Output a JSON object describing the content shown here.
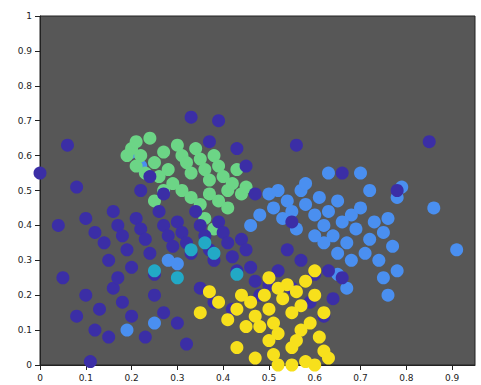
{
  "chart_data": {
    "type": "scatter",
    "marker": "circle",
    "grid": false,
    "xlim": [
      0,
      0.95
    ],
    "xticks": [
      0,
      0.1,
      0.2,
      0.3,
      0.4,
      0.5,
      0.6,
      0.7,
      0.8,
      0.9
    ],
    "ylim": [
      0,
      1
    ],
    "yticks": [
      0,
      0.1,
      0.2,
      0.3,
      0.4,
      0.5,
      0.6,
      0.7,
      0.8,
      0.9,
      1
    ],
    "series": [
      {
        "color": "#4a8ff0",
        "x": [
          0.5,
          0.52,
          0.54,
          0.55,
          0.57,
          0.58,
          0.6,
          0.61,
          0.62,
          0.63,
          0.64,
          0.65,
          0.66,
          0.67,
          0.68,
          0.69,
          0.7,
          0.71,
          0.72,
          0.73,
          0.74,
          0.75,
          0.76,
          0.77,
          0.78,
          0.79,
          0.72,
          0.7,
          0.75,
          0.76,
          0.78,
          0.68,
          0.65,
          0.62,
          0.6,
          0.56,
          0.53,
          0.51,
          0.48,
          0.46,
          0.86,
          0.91,
          0.67,
          0.65,
          0.2,
          0.22,
          0.28,
          0.3,
          0.19,
          0.25,
          0.63,
          0.58
        ],
        "y": [
          0.49,
          0.5,
          0.47,
          0.44,
          0.5,
          0.46,
          0.43,
          0.48,
          0.4,
          0.44,
          0.37,
          0.47,
          0.41,
          0.35,
          0.43,
          0.39,
          0.45,
          0.32,
          0.36,
          0.41,
          0.3,
          0.38,
          0.42,
          0.34,
          0.48,
          0.51,
          0.5,
          0.55,
          0.25,
          0.2,
          0.27,
          0.3,
          0.32,
          0.35,
          0.37,
          0.39,
          0.42,
          0.45,
          0.43,
          0.4,
          0.45,
          0.33,
          0.22,
          0.26,
          0.61,
          0.57,
          0.3,
          0.29,
          0.1,
          0.12,
          0.55,
          0.52
        ]
      },
      {
        "color": "#6cd586",
        "x": [
          0.2,
          0.21,
          0.22,
          0.24,
          0.25,
          0.23,
          0.27,
          0.28,
          0.3,
          0.31,
          0.32,
          0.33,
          0.34,
          0.35,
          0.36,
          0.37,
          0.38,
          0.39,
          0.4,
          0.41,
          0.42,
          0.43,
          0.44,
          0.45,
          0.29,
          0.31,
          0.33,
          0.35,
          0.37,
          0.26,
          0.21,
          0.19,
          0.39,
          0.41,
          0.36,
          0.38,
          0.27,
          0.25
        ],
        "y": [
          0.62,
          0.64,
          0.6,
          0.65,
          0.58,
          0.55,
          0.61,
          0.56,
          0.63,
          0.6,
          0.58,
          0.55,
          0.62,
          0.59,
          0.56,
          0.53,
          0.6,
          0.57,
          0.54,
          0.5,
          0.52,
          0.56,
          0.49,
          0.51,
          0.52,
          0.5,
          0.48,
          0.46,
          0.49,
          0.54,
          0.57,
          0.6,
          0.47,
          0.45,
          0.42,
          0.39,
          0.5,
          0.47
        ]
      },
      {
        "color": "#3b2ea6",
        "x": [
          0.0,
          0.06,
          0.08,
          0.04,
          0.1,
          0.12,
          0.14,
          0.15,
          0.16,
          0.17,
          0.18,
          0.19,
          0.2,
          0.21,
          0.22,
          0.23,
          0.24,
          0.25,
          0.26,
          0.27,
          0.28,
          0.29,
          0.3,
          0.31,
          0.32,
          0.33,
          0.34,
          0.35,
          0.36,
          0.37,
          0.38,
          0.39,
          0.4,
          0.41,
          0.42,
          0.43,
          0.44,
          0.45,
          0.46,
          0.47,
          0.48,
          0.5,
          0.52,
          0.55,
          0.59,
          0.62,
          0.64,
          0.66,
          0.6,
          0.57,
          0.54,
          0.1,
          0.08,
          0.12,
          0.11,
          0.13,
          0.16,
          0.18,
          0.2,
          0.23,
          0.25,
          0.27,
          0.3,
          0.32,
          0.17,
          0.05,
          0.22,
          0.24,
          0.27,
          0.33,
          0.39,
          0.37,
          0.43,
          0.45,
          0.47,
          0.56,
          0.55,
          0.66,
          0.85,
          0.78,
          0.63,
          0.35,
          0.38,
          0.42,
          0.15
        ],
        "y": [
          0.55,
          0.63,
          0.51,
          0.4,
          0.42,
          0.38,
          0.35,
          0.3,
          0.44,
          0.4,
          0.37,
          0.33,
          0.28,
          0.42,
          0.39,
          0.36,
          0.32,
          0.26,
          0.44,
          0.4,
          0.37,
          0.34,
          0.41,
          0.38,
          0.35,
          0.32,
          0.44,
          0.4,
          0.37,
          0.33,
          0.3,
          0.41,
          0.38,
          0.35,
          0.31,
          0.27,
          0.36,
          0.33,
          0.28,
          0.24,
          0.2,
          0.23,
          0.27,
          0.22,
          0.18,
          0.14,
          0.19,
          0.25,
          0.26,
          0.3,
          0.33,
          0.2,
          0.14,
          0.1,
          0.01,
          0.16,
          0.22,
          0.18,
          0.14,
          0.08,
          0.2,
          0.15,
          0.12,
          0.06,
          0.25,
          0.25,
          0.5,
          0.54,
          0.49,
          0.71,
          0.7,
          0.64,
          0.62,
          0.57,
          0.49,
          0.63,
          0.41,
          0.55,
          0.64,
          0.5,
          0.27,
          0.22,
          0.18,
          0.16,
          0.08
        ]
      },
      {
        "color": "#22a9c6",
        "x": [
          0.33,
          0.36,
          0.38,
          0.3,
          0.43,
          0.25
        ],
        "y": [
          0.33,
          0.35,
          0.32,
          0.25,
          0.26,
          0.27
        ]
      },
      {
        "color": "#f7e01c",
        "x": [
          0.35,
          0.37,
          0.39,
          0.41,
          0.43,
          0.44,
          0.46,
          0.47,
          0.48,
          0.49,
          0.5,
          0.51,
          0.52,
          0.53,
          0.54,
          0.55,
          0.56,
          0.57,
          0.58,
          0.59,
          0.6,
          0.61,
          0.62,
          0.6,
          0.5,
          0.51,
          0.52,
          0.55,
          0.58,
          0.6,
          0.62,
          0.63,
          0.55,
          0.57,
          0.45,
          0.43,
          0.47,
          0.5,
          0.52,
          0.56
        ],
        "y": [
          0.15,
          0.21,
          0.18,
          0.13,
          0.16,
          0.2,
          0.18,
          0.14,
          0.11,
          0.2,
          0.16,
          0.12,
          0.09,
          0.19,
          0.23,
          0.15,
          0.21,
          0.17,
          0.24,
          0.12,
          0.2,
          0.08,
          0.15,
          0.27,
          0.07,
          0.03,
          0.0,
          0.0,
          0.01,
          0.0,
          0.04,
          0.02,
          0.05,
          0.1,
          0.11,
          0.05,
          0.02,
          0.25,
          0.22,
          0.07
        ]
      }
    ]
  }
}
